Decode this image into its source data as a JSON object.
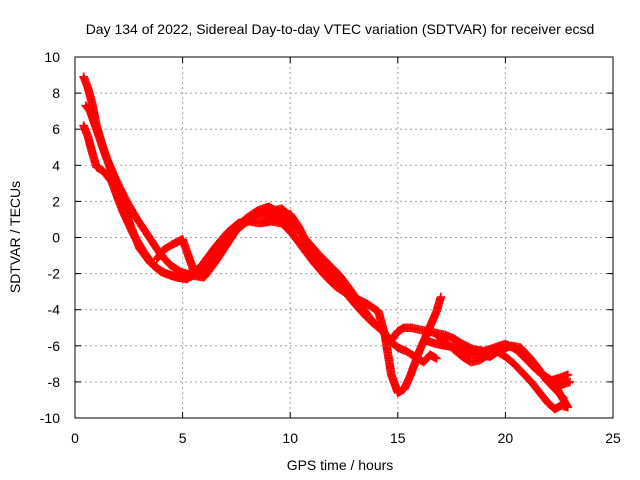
{
  "chart_data": {
    "type": "scatter",
    "title": "Day 134 of 2022, Sidereal Day-to-day VTEC variation (SDTVAR) for receiver ecsd",
    "xlabel": "GPS time / hours",
    "ylabel": "SDTVAR / TECUs",
    "xlim": [
      0,
      25
    ],
    "ylim": [
      -10,
      10
    ],
    "x_ticks": [
      "0",
      "5",
      "10",
      "15",
      "20",
      "25"
    ],
    "y_ticks": [
      "-10",
      "-8",
      "-6",
      "-4",
      "-2",
      "0",
      "2",
      "4",
      "6",
      "8",
      "10"
    ],
    "x_tick_values": [
      0,
      5,
      10,
      15,
      20,
      25
    ],
    "y_tick_values": [
      -10,
      -8,
      -6,
      -4,
      -2,
      0,
      2,
      4,
      6,
      8,
      10
    ],
    "grid": true,
    "marker": "+",
    "series": [
      {
        "name": "track-a",
        "color": "#ff0000",
        "points": [
          [
            0.4,
            8.9
          ],
          [
            0.6,
            8.3
          ],
          [
            0.8,
            7.4
          ],
          [
            1.0,
            6.2
          ],
          [
            1.3,
            5.0
          ],
          [
            1.7,
            3.6
          ],
          [
            2.2,
            2.0
          ],
          [
            2.6,
            0.6
          ],
          [
            3.0,
            -0.6
          ],
          [
            3.5,
            -1.4
          ],
          [
            4.0,
            -1.9
          ],
          [
            4.5,
            -2.1
          ],
          [
            5.0,
            -2.2
          ],
          [
            5.5,
            -1.9
          ],
          [
            6.0,
            -1.5
          ],
          [
            6.5,
            -0.8
          ],
          [
            7.0,
            -0.2
          ],
          [
            7.5,
            0.5
          ],
          [
            8.0,
            1.0
          ],
          [
            8.5,
            1.3
          ],
          [
            9.0,
            1.6
          ],
          [
            9.4,
            1.5
          ],
          [
            9.8,
            1.0
          ],
          [
            10.3,
            0.5
          ],
          [
            10.8,
            -0.2
          ],
          [
            11.3,
            -0.9
          ],
          [
            11.8,
            -1.5
          ],
          [
            12.3,
            -2.1
          ],
          [
            12.8,
            -2.9
          ],
          [
            13.3,
            -3.8
          ],
          [
            13.8,
            -4.6
          ],
          [
            14.3,
            -5.2
          ],
          [
            14.7,
            -5.7
          ],
          [
            15.0,
            -5.2
          ],
          [
            15.3,
            -5.0
          ],
          [
            15.6,
            -5.0
          ],
          [
            16.0,
            -5.1
          ],
          [
            16.4,
            -5.2
          ],
          [
            16.8,
            -5.3
          ],
          [
            17.2,
            -5.4
          ],
          [
            17.6,
            -5.6
          ],
          [
            18.0,
            -5.9
          ],
          [
            18.5,
            -6.2
          ],
          [
            19.0,
            -6.3
          ],
          [
            19.5,
            -6.1
          ],
          [
            20.0,
            -5.9
          ],
          [
            20.5,
            -6.2
          ],
          [
            21.0,
            -6.8
          ],
          [
            21.5,
            -7.4
          ],
          [
            22.0,
            -7.8
          ],
          [
            22.5,
            -8.2
          ],
          [
            23.0,
            -8.0
          ]
        ]
      },
      {
        "name": "track-b",
        "color": "#ff0000",
        "points": [
          [
            0.4,
            6.2
          ],
          [
            0.6,
            5.6
          ],
          [
            0.8,
            4.7
          ],
          [
            1.0,
            3.9
          ],
          [
            1.3,
            3.7
          ],
          [
            1.7,
            3.1
          ],
          [
            2.2,
            1.5
          ],
          [
            2.7,
            0.2
          ],
          [
            3.2,
            -0.8
          ],
          [
            3.7,
            -1.6
          ],
          [
            4.2,
            -2.0
          ],
          [
            4.7,
            -2.2
          ],
          [
            5.2,
            -2.3
          ],
          [
            5.6,
            -2.0
          ],
          [
            6.1,
            -1.2
          ],
          [
            6.6,
            -0.4
          ],
          [
            7.1,
            0.3
          ],
          [
            7.6,
            0.8
          ],
          [
            8.1,
            0.9
          ],
          [
            8.6,
            0.8
          ],
          [
            9.1,
            0.9
          ],
          [
            9.6,
            0.8
          ],
          [
            10.1,
            0.2
          ],
          [
            10.6,
            -0.6
          ],
          [
            11.1,
            -1.4
          ],
          [
            11.6,
            -2.1
          ],
          [
            12.1,
            -2.7
          ],
          [
            12.6,
            -3.1
          ],
          [
            13.1,
            -3.4
          ],
          [
            13.6,
            -3.7
          ],
          [
            14.1,
            -4.1
          ],
          [
            14.4,
            -5.4
          ],
          [
            14.7,
            -7.6
          ],
          [
            15.0,
            -8.6
          ],
          [
            15.3,
            -8.4
          ],
          [
            15.6,
            -7.6
          ],
          [
            16.0,
            -6.3
          ],
          [
            16.4,
            -5.2
          ],
          [
            16.8,
            -4.1
          ],
          [
            17.0,
            -3.3
          ]
        ]
      },
      {
        "name": "track-c",
        "color": "#ff0000",
        "points": [
          [
            0.5,
            7.3
          ],
          [
            0.7,
            7.0
          ],
          [
            1.0,
            6.0
          ],
          [
            1.4,
            4.6
          ],
          [
            1.9,
            3.2
          ],
          [
            2.4,
            2.0
          ],
          [
            2.9,
            1.0
          ],
          [
            3.4,
            0.1
          ],
          [
            3.9,
            -0.8
          ],
          [
            4.4,
            -1.5
          ],
          [
            4.9,
            -1.9
          ],
          [
            5.4,
            -2.1
          ],
          [
            6.0,
            -2.2
          ],
          [
            6.5,
            -1.4
          ],
          [
            7.0,
            -0.5
          ],
          [
            7.5,
            0.4
          ],
          [
            8.0,
            0.9
          ],
          [
            8.5,
            1.3
          ],
          [
            9.0,
            1.2
          ],
          [
            9.5,
            1.1
          ],
          [
            10.0,
            1.3
          ],
          [
            10.4,
            0.6
          ],
          [
            10.8,
            -0.4
          ],
          [
            11.3,
            -1.2
          ],
          [
            11.8,
            -1.9
          ],
          [
            12.3,
            -2.6
          ],
          [
            12.8,
            -3.4
          ],
          [
            13.3,
            -4.1
          ],
          [
            13.8,
            -4.7
          ],
          [
            14.3,
            -5.2
          ],
          [
            14.6,
            -5.7
          ],
          [
            15.0,
            -6.1
          ],
          [
            15.4,
            -6.3
          ],
          [
            15.8,
            -6.6
          ],
          [
            16.2,
            -6.9
          ],
          [
            16.5,
            -6.5
          ],
          [
            16.8,
            -6.7
          ]
        ]
      },
      {
        "name": "track-d",
        "color": "#ff0000",
        "points": [
          [
            3.8,
            -1.2
          ],
          [
            4.1,
            -0.7
          ],
          [
            4.5,
            -0.4
          ],
          [
            5.0,
            -0.1
          ],
          [
            5.5,
            -1.8
          ],
          [
            6.0,
            -1.9
          ],
          [
            6.5,
            -0.6
          ],
          [
            7.0,
            -0.3
          ],
          [
            7.5,
            0.6
          ],
          [
            8.0,
            1.1
          ],
          [
            8.5,
            1.5
          ],
          [
            9.0,
            1.7
          ],
          [
            9.3,
            1.5
          ],
          [
            9.6,
            1.6
          ],
          [
            10.0,
            1.2
          ]
        ]
      },
      {
        "name": "track-e",
        "color": "#ff0000",
        "points": [
          [
            16.8,
            -5.4
          ],
          [
            17.2,
            -5.8
          ],
          [
            17.6,
            -6.2
          ],
          [
            18.0,
            -6.6
          ],
          [
            18.4,
            -6.9
          ],
          [
            18.8,
            -6.8
          ],
          [
            19.2,
            -6.5
          ],
          [
            19.6,
            -6.3
          ],
          [
            20.0,
            -6.6
          ],
          [
            20.4,
            -7.0
          ],
          [
            20.8,
            -7.5
          ],
          [
            21.2,
            -8.0
          ],
          [
            21.6,
            -8.6
          ],
          [
            22.0,
            -9.2
          ],
          [
            22.3,
            -9.5
          ],
          [
            22.6,
            -9.3
          ],
          [
            22.9,
            -9.4
          ],
          [
            22.5,
            -8.6
          ],
          [
            22.2,
            -7.9
          ],
          [
            22.7,
            -7.7
          ],
          [
            22.9,
            -7.6
          ]
        ]
      },
      {
        "name": "track-f",
        "color": "#ff0000",
        "points": [
          [
            16.3,
            -5.7
          ],
          [
            16.8,
            -5.9
          ],
          [
            17.3,
            -6.0
          ],
          [
            17.8,
            -6.1
          ],
          [
            18.3,
            -6.4
          ],
          [
            18.8,
            -6.5
          ],
          [
            19.3,
            -6.6
          ],
          [
            19.8,
            -6.2
          ],
          [
            20.3,
            -6.0
          ],
          [
            20.7,
            -6.1
          ],
          [
            21.1,
            -6.6
          ],
          [
            21.5,
            -7.2
          ],
          [
            21.9,
            -7.9
          ],
          [
            22.3,
            -8.4
          ],
          [
            22.7,
            -8.9
          ]
        ]
      }
    ]
  }
}
